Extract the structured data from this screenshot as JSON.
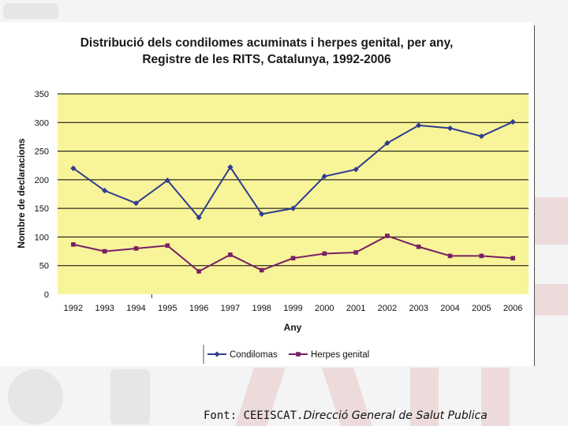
{
  "chart_data": {
    "type": "line",
    "title_line1": "Distribució dels condilomes acuminats i herpes genital, per any,",
    "title_line2": "Registre de les RITS, Catalunya, 1992-2006",
    "xlabel": "Any",
    "ylabel": "Nombre de declaracions",
    "ylim": [
      0,
      350
    ],
    "yticks": [
      0,
      50,
      100,
      150,
      200,
      250,
      300,
      350
    ],
    "grid": "horizontal",
    "legend_position": "bottom",
    "categories": [
      "1992",
      "1993",
      "1994",
      "1995",
      "1996",
      "1997",
      "1998",
      "1999",
      "2000",
      "2001",
      "2002",
      "2003",
      "2004",
      "2005",
      "2006"
    ],
    "series": [
      {
        "name": "Condilomas",
        "color": "#2e3d8f",
        "marker": "diamond",
        "values": [
          220,
          181,
          159,
          199,
          134,
          222,
          140,
          150,
          206,
          218,
          264,
          295,
          290,
          276,
          301
        ]
      },
      {
        "name": "Herpes genital",
        "color": "#7a1f63",
        "marker": "square",
        "values": [
          87,
          75,
          80,
          85,
          40,
          69,
          42,
          63,
          71,
          73,
          102,
          83,
          67,
          67,
          63
        ]
      }
    ]
  },
  "footer": {
    "source_prefix": "Font: CEEISCAT.",
    "source_rest": "Direcció General de Salut Publica"
  },
  "colors": {
    "plot_background": "#f8f49a",
    "gridline": "#000000"
  }
}
